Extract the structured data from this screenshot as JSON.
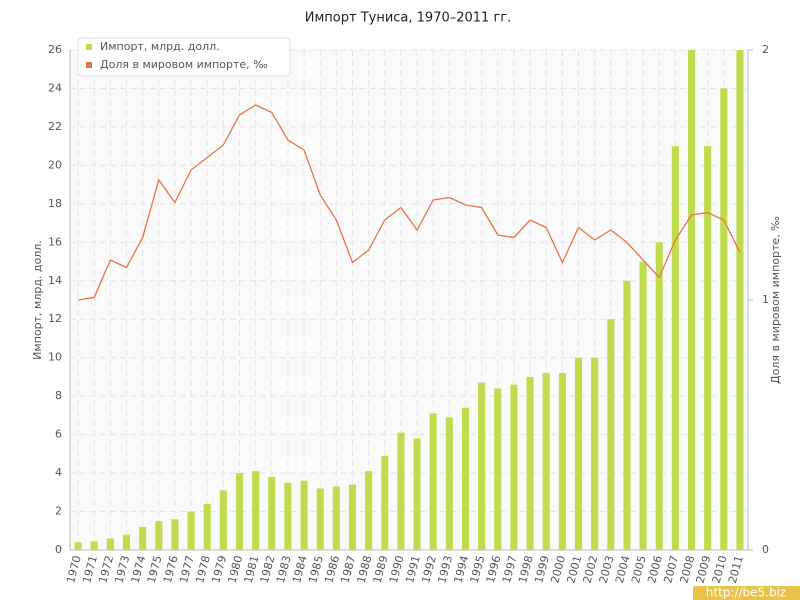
{
  "chart_data": {
    "type": "bar-line",
    "title": "Импорт Туниса, 1970–2011 гг.",
    "y_label": "Импорт, млрд. долл.",
    "y2_label": "Доля в мировом импорте, ‰",
    "watermark": "http://be5.biz",
    "categories": [
      "1970",
      "1971",
      "1972",
      "1973",
      "1974",
      "1975",
      "1976",
      "1977",
      "1978",
      "1979",
      "1980",
      "1981",
      "1982",
      "1983",
      "1984",
      "1985",
      "1986",
      "1987",
      "1988",
      "1989",
      "1990",
      "1991",
      "1992",
      "1993",
      "1994",
      "1995",
      "1996",
      "1997",
      "1998",
      "1999",
      "2000",
      "2001",
      "2002",
      "2003",
      "2004",
      "2005",
      "2006",
      "2007",
      "2008",
      "2009",
      "2010",
      "2011"
    ],
    "series": [
      {
        "name": "Импорт, млрд. долл.",
        "color": "#bfdc4e",
        "kind": "bar",
        "values": [
          0.4,
          0.45,
          0.6,
          0.8,
          1.2,
          1.5,
          1.6,
          2.0,
          2.4,
          3.1,
          4.0,
          4.1,
          3.8,
          3.5,
          3.6,
          3.2,
          3.3,
          3.4,
          4.1,
          4.9,
          6.1,
          5.8,
          7.1,
          6.9,
          7.4,
          8.7,
          8.4,
          8.6,
          9.0,
          9.2,
          9.2,
          10.0,
          10.0,
          12.0,
          14.0,
          15.0,
          16.0,
          21.0,
          26.0,
          21.0,
          24.0,
          26.0
        ]
      },
      {
        "name": "Доля в мировом импорте, ‰",
        "color": "#e2754a",
        "kind": "line",
        "axis": "y2",
        "values": [
          1.0,
          1.01,
          1.16,
          1.13,
          1.25,
          1.48,
          1.39,
          1.52,
          1.57,
          1.62,
          1.74,
          1.78,
          1.75,
          1.64,
          1.6,
          1.42,
          1.32,
          1.15,
          1.2,
          1.32,
          1.37,
          1.28,
          1.4,
          1.41,
          1.38,
          1.37,
          1.26,
          1.25,
          1.32,
          1.29,
          1.15,
          1.29,
          1.24,
          1.28,
          1.23,
          1.16,
          1.09,
          1.24,
          1.34,
          1.35,
          1.32,
          1.19
        ]
      }
    ],
    "ylim": [
      0,
      26
    ],
    "yticks": [
      0,
      2,
      4,
      6,
      8,
      10,
      12,
      14,
      16,
      18,
      20,
      22,
      24,
      26
    ],
    "y2lim": [
      0,
      2
    ],
    "y2ticks": [
      0,
      1,
      2
    ],
    "grid": true,
    "legend": "top-left"
  }
}
